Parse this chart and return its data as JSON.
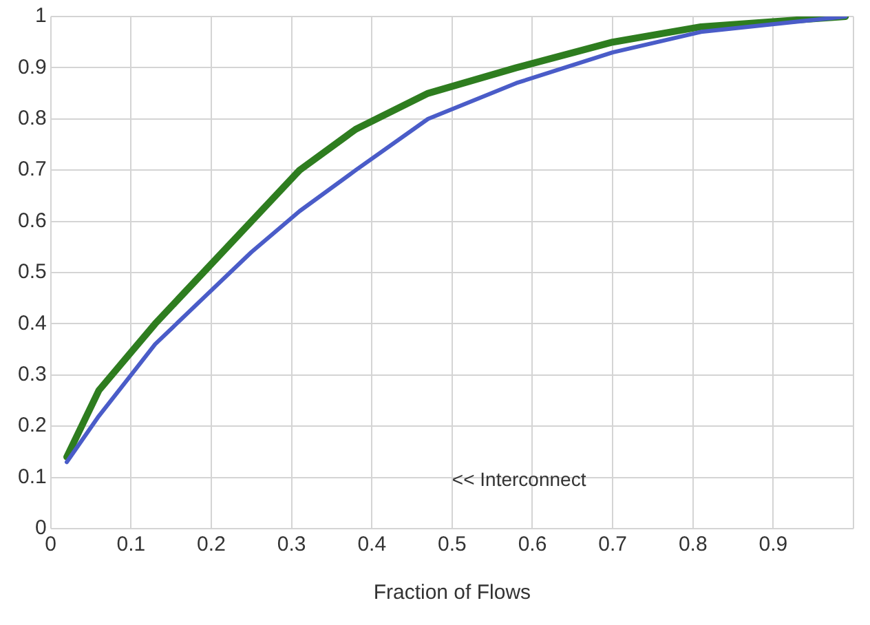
{
  "chart_data": {
    "type": "line",
    "xlabel": "Fraction of Flows",
    "annotations": [
      "<< Interconnect"
    ],
    "xlim": [
      0,
      1
    ],
    "xticks": [
      0,
      0.1,
      0.2,
      0.3,
      0.4,
      0.5,
      0.6,
      0.7,
      0.8,
      0.9,
      {
        "value": 1,
        "label": null
      }
    ],
    "ylim": [
      0,
      1
    ],
    "yticks": [
      0,
      0.1,
      0.2,
      0.3,
      0.4,
      0.5,
      0.6,
      0.7,
      0.8,
      0.9,
      1
    ],
    "grid": true,
    "marker": "none",
    "line_style": "solid",
    "series": [
      {
        "color": "#4a5cc8",
        "x": [
          0.02,
          0.06,
          0.1,
          0.13,
          0.19,
          0.25,
          0.31,
          0.38,
          0.47,
          0.58,
          0.7,
          0.81,
          0.99
        ],
        "values": [
          0.13,
          0.22,
          0.3,
          0.36,
          0.45,
          0.54,
          0.62,
          0.7,
          0.8,
          0.87,
          0.93,
          0.97,
          1.0
        ]
      },
      {
        "color": "#2e7d1f",
        "x": [
          0.02,
          0.06,
          0.13,
          0.19,
          0.25,
          0.31,
          0.38,
          0.47,
          0.58,
          0.7,
          0.81,
          0.99
        ],
        "values": [
          0.14,
          0.27,
          0.4,
          0.5,
          0.6,
          0.7,
          0.78,
          0.85,
          0.9,
          0.95,
          0.98,
          1.0
        ]
      }
    ]
  }
}
